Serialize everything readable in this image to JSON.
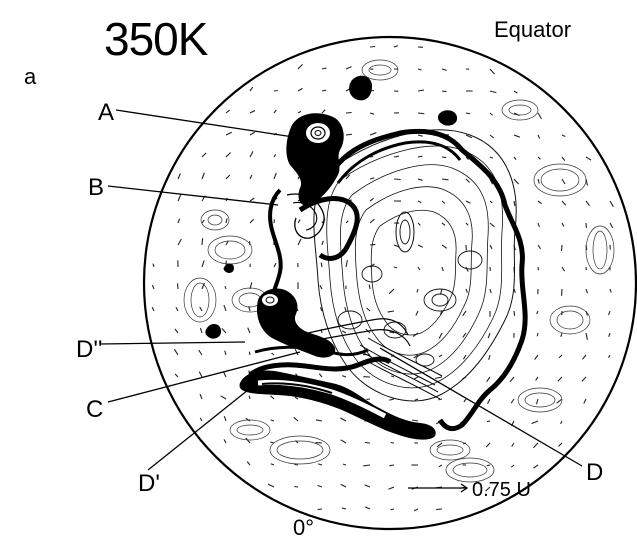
{
  "figure": {
    "panel_letter": "a",
    "title": "350K",
    "top_label": "Equator",
    "bottom_label": "0°",
    "scale_label": "0.75 U",
    "features": [
      {
        "id": "A",
        "label": "A"
      },
      {
        "id": "B",
        "label": "B"
      },
      {
        "id": "Dpp",
        "label": "D''"
      },
      {
        "id": "C",
        "label": "C"
      },
      {
        "id": "Dp",
        "label": "D'"
      },
      {
        "id": "D",
        "label": "D"
      }
    ]
  },
  "colors": {
    "ink": "#000000",
    "paper": "#ffffff",
    "contour": "#1a1a1a"
  }
}
